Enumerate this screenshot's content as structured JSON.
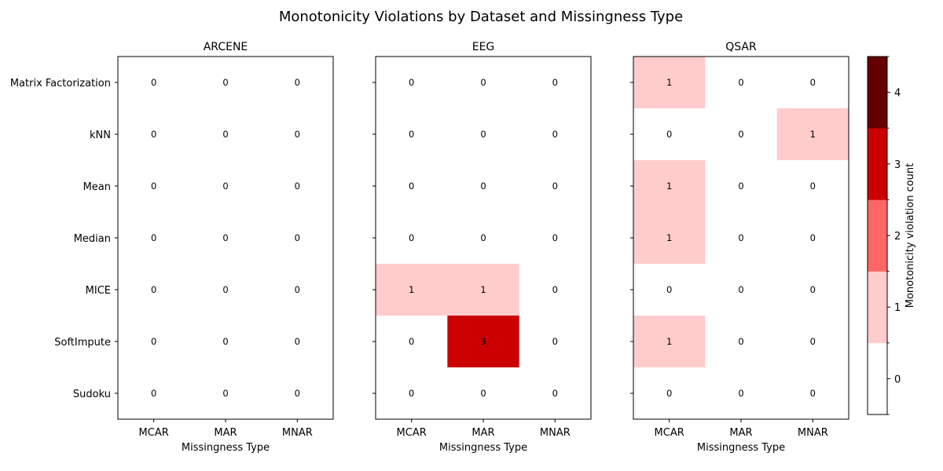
{
  "chart_data": {
    "type": "heatmap",
    "title": "Monotonicity Violations by Dataset and Missingness Type",
    "rows": [
      "Matrix Factorization",
      "kNN",
      "Mean",
      "Median",
      "MICE",
      "SoftImpute",
      "Sudoku"
    ],
    "columns": [
      "MCAR",
      "MAR",
      "MNAR"
    ],
    "xlabel": "Missingness Type",
    "panels": [
      {
        "name": "ARCENE",
        "values": [
          [
            0,
            0,
            0
          ],
          [
            0,
            0,
            0
          ],
          [
            0,
            0,
            0
          ],
          [
            0,
            0,
            0
          ],
          [
            0,
            0,
            0
          ],
          [
            0,
            0,
            0
          ],
          [
            0,
            0,
            0
          ]
        ]
      },
      {
        "name": "EEG",
        "values": [
          [
            0,
            0,
            0
          ],
          [
            0,
            0,
            0
          ],
          [
            0,
            0,
            0
          ],
          [
            0,
            0,
            0
          ],
          [
            1,
            1,
            0
          ],
          [
            0,
            3,
            0
          ],
          [
            0,
            0,
            0
          ]
        ]
      },
      {
        "name": "QSAR",
        "values": [
          [
            1,
            0,
            0
          ],
          [
            0,
            0,
            1
          ],
          [
            1,
            0,
            0
          ],
          [
            1,
            0,
            0
          ],
          [
            0,
            0,
            0
          ],
          [
            1,
            0,
            0
          ],
          [
            0,
            0,
            0
          ]
        ]
      }
    ],
    "colorbar": {
      "label": "Monotonicity violation count",
      "ticks": [
        0,
        1,
        2,
        3,
        4
      ],
      "colors": [
        "#ffffff",
        "#ffcccc",
        "#ff6666",
        "#cc0000",
        "#660000"
      ]
    },
    "grid": false
  }
}
